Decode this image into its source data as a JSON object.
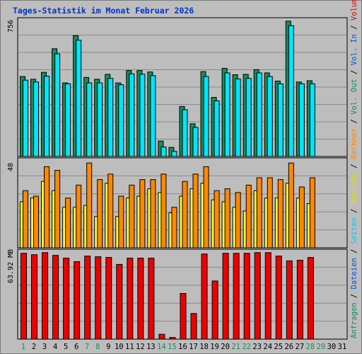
{
  "title": "Tages-Statistik im Monat Februar 2026",
  "colors": {
    "background": "#bdbdbd",
    "plot_bg": "#bdbdbd",
    "title": "#0033cc",
    "grid": "#8a8a8a",
    "anfragen": "#1a8c5a",
    "dateien": "#00e5ff",
    "seiten": "#00ccff",
    "besuche": "#ffff33",
    "rechner": "#ff8800",
    "volumen": "#ee0000",
    "weekend_day": "#1a8c5a",
    "weekday": "#000000"
  },
  "side_legend_top": [
    {
      "text": "Anfragen",
      "color": "#1a8c5a"
    },
    {
      "text": " / ",
      "color": "#000000"
    },
    {
      "text": "Dateien",
      "color": "#0055dd"
    },
    {
      "text": " / ",
      "color": "#000000"
    },
    {
      "text": "Seiten",
      "color": "#00ccff"
    },
    {
      "text": " / ",
      "color": "#000000"
    },
    {
      "text": "Besuche",
      "color": "#dddd00"
    },
    {
      "text": " / ",
      "color": "#000000"
    },
    {
      "text": "Rechner",
      "color": "#ff8800"
    },
    {
      "text": " / ",
      "color": "#000000"
    },
    {
      "text": "Vol. Out",
      "color": "#1a8c5a"
    },
    {
      "text": " / ",
      "color": "#000000"
    },
    {
      "text": "Vol. In",
      "color": "#0055dd"
    },
    {
      "text": " / ",
      "color": "#000000"
    },
    {
      "text": "Volumen",
      "color": "#ee0000"
    }
  ],
  "chart_data": [
    {
      "type": "bar",
      "panel": "hits",
      "y_label": "756",
      "ylim": [
        0,
        756
      ],
      "categories": [
        "1",
        "2",
        "3",
        "4",
        "5",
        "6",
        "7",
        "8",
        "9",
        "10",
        "11",
        "12",
        "13",
        "14",
        "15",
        "16",
        "17",
        "18",
        "19",
        "20",
        "21",
        "22",
        "23",
        "24",
        "25",
        "26",
        "27",
        "28",
        "29",
        "30",
        "31"
      ],
      "series": [
        {
          "name": "Anfragen",
          "values": [
            440,
            425,
            463,
            593,
            405,
            665,
            435,
            425,
            452,
            405,
            473,
            473,
            465,
            85,
            50,
            275,
            180,
            467,
            325,
            485,
            450,
            452,
            478,
            460,
            415,
            745,
            410,
            417,
            null,
            null,
            null
          ]
        },
        {
          "name": "Dateien",
          "values": [
            420,
            410,
            442,
            565,
            400,
            640,
            405,
            405,
            430,
            395,
            455,
            453,
            445,
            52,
            28,
            257,
            160,
            440,
            306,
            460,
            427,
            430,
            460,
            440,
            400,
            720,
            400,
            400,
            null,
            null,
            null
          ]
        }
      ]
    },
    {
      "type": "bar",
      "panel": "visits",
      "y_label": "48",
      "ylim": [
        0,
        48
      ],
      "categories": [
        "1",
        "2",
        "3",
        "4",
        "5",
        "6",
        "7",
        "8",
        "9",
        "10",
        "11",
        "12",
        "13",
        "14",
        "15",
        "16",
        "17",
        "18",
        "19",
        "20",
        "21",
        "22",
        "23",
        "24",
        "25",
        "26",
        "27",
        "28",
        "29",
        "30",
        "31"
      ],
      "series": [
        {
          "name": "Besuche",
          "values": [
            25,
            27,
            36,
            31,
            22,
            22,
            23,
            17,
            35,
            17,
            27,
            28,
            32,
            30,
            19,
            28,
            32,
            35,
            26,
            25,
            22,
            20,
            31,
            27,
            27,
            35,
            27,
            24,
            null,
            null,
            null
          ]
        },
        {
          "name": "Rechner",
          "values": [
            31,
            28,
            44,
            42,
            27,
            34,
            46,
            37,
            40,
            28,
            34,
            37,
            37,
            40,
            22,
            36,
            40,
            44,
            31,
            32,
            30,
            34,
            38,
            38,
            37,
            46,
            33,
            38,
            null,
            null,
            null
          ]
        }
      ]
    },
    {
      "type": "bar",
      "panel": "volume",
      "y_label": "63.92 MB",
      "ylim": [
        0,
        63.92
      ],
      "categories": [
        "1",
        "2",
        "3",
        "4",
        "5",
        "6",
        "7",
        "8",
        "9",
        "10",
        "11",
        "12",
        "13",
        "14",
        "15",
        "16",
        "17",
        "18",
        "19",
        "20",
        "21",
        "22",
        "23",
        "24",
        "25",
        "26",
        "27",
        "28",
        "29",
        "30",
        "31"
      ],
      "series": [
        {
          "name": "Volumen",
          "values": [
            62,
            61,
            62.5,
            60.5,
            58.5,
            56,
            60,
            59.5,
            59,
            54,
            58.5,
            58.5,
            58.5,
            3.5,
            1.2,
            33,
            18.5,
            61.5,
            42,
            62,
            62,
            62,
            62.5,
            62.5,
            60,
            56.5,
            57,
            59,
            null,
            null,
            null
          ]
        }
      ]
    }
  ],
  "weekend_days": [
    "1",
    "7",
    "8",
    "14",
    "15",
    "21",
    "22",
    "28",
    "29"
  ]
}
